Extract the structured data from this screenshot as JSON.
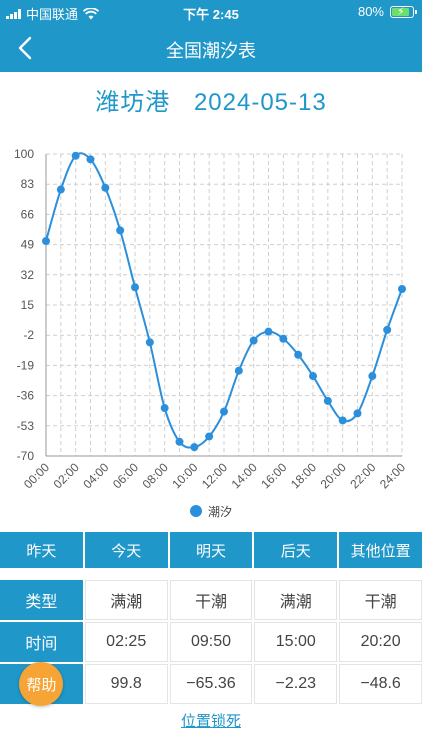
{
  "status_bar": {
    "carrier": "中国联通",
    "time": "下午 2:45",
    "battery": "80%"
  },
  "nav": {
    "title": "全国潮汐表"
  },
  "port": {
    "name": "潍坊港",
    "date": "2024-05-13"
  },
  "chart_data": {
    "type": "line",
    "title": "",
    "xlabel": "",
    "ylabel": "",
    "ylim": [
      -70,
      100
    ],
    "yticks": [
      100,
      83,
      66,
      49,
      32,
      15,
      -2,
      -19,
      -36,
      -53,
      -70
    ],
    "xticks": [
      "00:00",
      "02:00",
      "04:00",
      "06:00",
      "08:00",
      "10:00",
      "12:00",
      "14:00",
      "16:00",
      "18:00",
      "20:00",
      "22:00",
      "24:00"
    ],
    "xlim": [
      0,
      24
    ],
    "grid": true,
    "legend_position": "bottom",
    "series": [
      {
        "name": "潮汐",
        "color": "#2b8fdc",
        "x": [
          0,
          1,
          2,
          3,
          4,
          5,
          6,
          7,
          8,
          9,
          10,
          11,
          12,
          13,
          14,
          15,
          16,
          17,
          18,
          19,
          20,
          21,
          22,
          23,
          24
        ],
        "y": [
          51,
          80,
          99,
          97,
          81,
          57,
          25,
          -6,
          -43,
          -62,
          -65,
          -59,
          -45,
          -22,
          -5,
          0,
          -4,
          -13,
          -25,
          -39,
          -50,
          -46,
          -25,
          1,
          24
        ]
      }
    ]
  },
  "day_buttons": [
    "昨天",
    "今天",
    "明天",
    "后天",
    "其他位置"
  ],
  "tide_table": {
    "type_label": "类型",
    "types": [
      "满潮",
      "干潮",
      "满潮",
      "干潮"
    ],
    "time_label": "时间",
    "times": [
      "02:25",
      "09:50",
      "15:00",
      "20:20"
    ],
    "help_label": "帮助",
    "heights": [
      "99.8",
      "−65.36",
      "−2.23",
      "−48.6"
    ]
  },
  "lock_link": "位置锁死"
}
